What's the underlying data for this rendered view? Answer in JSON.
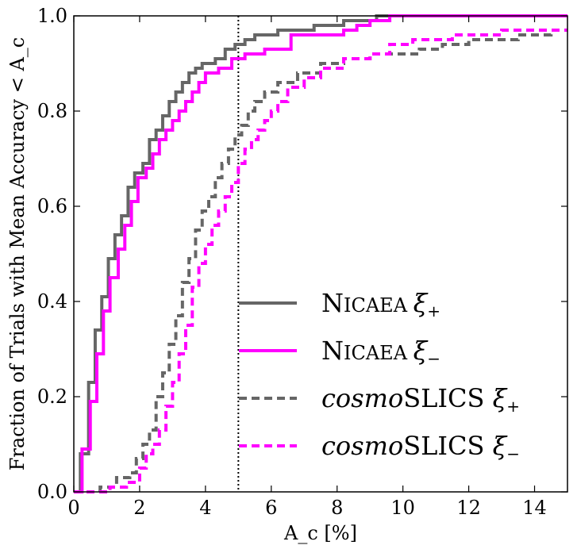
{
  "chart_data": {
    "type": "line",
    "step": true,
    "title": "",
    "xlabel": "A_c [%]",
    "ylabel": "Fraction of Trials with Mean Accuracy < A_c",
    "xlim": [
      0,
      15
    ],
    "ylim": [
      0,
      1
    ],
    "xticks": [
      0,
      2,
      4,
      6,
      8,
      10,
      12,
      14
    ],
    "yticks": [
      0.0,
      0.2,
      0.4,
      0.6,
      0.8,
      1.0
    ],
    "xtick_labels": [
      "0",
      "2",
      "4",
      "6",
      "8",
      "10",
      "12",
      "14"
    ],
    "ytick_labels": [
      "0.0",
      "0.2",
      "0.4",
      "0.6",
      "0.8",
      "1.0"
    ],
    "grid": false,
    "legend_position": "lower-right",
    "reference_line": {
      "x": 5,
      "style": "dotted",
      "color": "#000000"
    },
    "series": [
      {
        "name": "NICAEA ξ+",
        "legend": {
          "smallcaps": "Nicaea",
          "prefix": "",
          "greek": "ξ",
          "sub": "+"
        },
        "color": "#666666",
        "dash": "solid",
        "points": [
          [
            0.0,
            0.0
          ],
          [
            0.2,
            0.0
          ],
          [
            0.2,
            0.08
          ],
          [
            0.45,
            0.08
          ],
          [
            0.45,
            0.23
          ],
          [
            0.65,
            0.23
          ],
          [
            0.65,
            0.34
          ],
          [
            0.85,
            0.34
          ],
          [
            0.85,
            0.41
          ],
          [
            1.05,
            0.41
          ],
          [
            1.05,
            0.49
          ],
          [
            1.25,
            0.49
          ],
          [
            1.25,
            0.54
          ],
          [
            1.45,
            0.54
          ],
          [
            1.45,
            0.58
          ],
          [
            1.65,
            0.58
          ],
          [
            1.65,
            0.64
          ],
          [
            1.85,
            0.64
          ],
          [
            1.85,
            0.67
          ],
          [
            2.1,
            0.67
          ],
          [
            2.1,
            0.69
          ],
          [
            2.3,
            0.69
          ],
          [
            2.3,
            0.74
          ],
          [
            2.5,
            0.74
          ],
          [
            2.5,
            0.76
          ],
          [
            2.7,
            0.76
          ],
          [
            2.7,
            0.79
          ],
          [
            2.9,
            0.79
          ],
          [
            2.9,
            0.82
          ],
          [
            3.1,
            0.82
          ],
          [
            3.1,
            0.84
          ],
          [
            3.3,
            0.84
          ],
          [
            3.3,
            0.86
          ],
          [
            3.5,
            0.86
          ],
          [
            3.5,
            0.88
          ],
          [
            3.7,
            0.88
          ],
          [
            3.7,
            0.89
          ],
          [
            3.9,
            0.89
          ],
          [
            3.9,
            0.9
          ],
          [
            4.3,
            0.9
          ],
          [
            4.3,
            0.91
          ],
          [
            4.6,
            0.91
          ],
          [
            4.6,
            0.93
          ],
          [
            4.9,
            0.93
          ],
          [
            4.9,
            0.94
          ],
          [
            5.2,
            0.94
          ],
          [
            5.2,
            0.95
          ],
          [
            5.5,
            0.95
          ],
          [
            5.5,
            0.96
          ],
          [
            6.2,
            0.96
          ],
          [
            6.2,
            0.97
          ],
          [
            7.3,
            0.97
          ],
          [
            7.3,
            0.98
          ],
          [
            8.2,
            0.98
          ],
          [
            8.2,
            0.99
          ],
          [
            9.2,
            0.99
          ],
          [
            9.2,
            1.0
          ],
          [
            15.0,
            1.0
          ]
        ]
      },
      {
        "name": "NICAEA ξ−",
        "legend": {
          "smallcaps": "Nicaea",
          "prefix": "",
          "greek": "ξ",
          "sub": "−"
        },
        "color": "#ff00ff",
        "dash": "solid",
        "points": [
          [
            0.0,
            0.0
          ],
          [
            0.25,
            0.0
          ],
          [
            0.25,
            0.09
          ],
          [
            0.5,
            0.09
          ],
          [
            0.5,
            0.19
          ],
          [
            0.7,
            0.19
          ],
          [
            0.7,
            0.29
          ],
          [
            0.9,
            0.29
          ],
          [
            0.9,
            0.38
          ],
          [
            1.1,
            0.38
          ],
          [
            1.1,
            0.45
          ],
          [
            1.35,
            0.45
          ],
          [
            1.35,
            0.51
          ],
          [
            1.55,
            0.51
          ],
          [
            1.55,
            0.56
          ],
          [
            1.75,
            0.56
          ],
          [
            1.75,
            0.61
          ],
          [
            1.95,
            0.61
          ],
          [
            1.95,
            0.66
          ],
          [
            2.2,
            0.66
          ],
          [
            2.2,
            0.68
          ],
          [
            2.4,
            0.68
          ],
          [
            2.4,
            0.71
          ],
          [
            2.6,
            0.71
          ],
          [
            2.6,
            0.74
          ],
          [
            2.8,
            0.74
          ],
          [
            2.8,
            0.76
          ],
          [
            3.0,
            0.76
          ],
          [
            3.0,
            0.78
          ],
          [
            3.2,
            0.78
          ],
          [
            3.2,
            0.8
          ],
          [
            3.4,
            0.8
          ],
          [
            3.4,
            0.82
          ],
          [
            3.6,
            0.82
          ],
          [
            3.6,
            0.84
          ],
          [
            3.8,
            0.84
          ],
          [
            3.8,
            0.86
          ],
          [
            4.0,
            0.86
          ],
          [
            4.0,
            0.88
          ],
          [
            4.4,
            0.88
          ],
          [
            4.4,
            0.89
          ],
          [
            4.8,
            0.89
          ],
          [
            4.8,
            0.91
          ],
          [
            5.2,
            0.91
          ],
          [
            5.2,
            0.92
          ],
          [
            5.8,
            0.92
          ],
          [
            5.8,
            0.93
          ],
          [
            6.6,
            0.93
          ],
          [
            6.6,
            0.96
          ],
          [
            8.2,
            0.96
          ],
          [
            8.2,
            0.97
          ],
          [
            8.6,
            0.97
          ],
          [
            8.6,
            0.98
          ],
          [
            9.0,
            0.98
          ],
          [
            9.0,
            0.99
          ],
          [
            9.6,
            0.99
          ],
          [
            9.6,
            1.0
          ],
          [
            15.0,
            1.0
          ]
        ]
      },
      {
        "name": "cosmoSLICS ξ+",
        "legend": {
          "smallcaps": "",
          "prefix": "cosmo",
          "greek": "ξ",
          "sub": "+",
          "suffix": "SLICS"
        },
        "color": "#666666",
        "dash": "dashed",
        "points": [
          [
            0.0,
            0.0
          ],
          [
            0.8,
            0.0
          ],
          [
            0.8,
            0.01
          ],
          [
            1.3,
            0.01
          ],
          [
            1.3,
            0.03
          ],
          [
            1.7,
            0.03
          ],
          [
            1.7,
            0.04
          ],
          [
            1.9,
            0.04
          ],
          [
            1.9,
            0.07
          ],
          [
            2.1,
            0.07
          ],
          [
            2.1,
            0.1
          ],
          [
            2.3,
            0.1
          ],
          [
            2.3,
            0.13
          ],
          [
            2.5,
            0.13
          ],
          [
            2.5,
            0.2
          ],
          [
            2.7,
            0.2
          ],
          [
            2.7,
            0.25
          ],
          [
            2.9,
            0.25
          ],
          [
            2.9,
            0.31
          ],
          [
            3.1,
            0.31
          ],
          [
            3.1,
            0.37
          ],
          [
            3.3,
            0.37
          ],
          [
            3.3,
            0.44
          ],
          [
            3.5,
            0.44
          ],
          [
            3.5,
            0.49
          ],
          [
            3.7,
            0.49
          ],
          [
            3.7,
            0.55
          ],
          [
            3.9,
            0.55
          ],
          [
            3.9,
            0.59
          ],
          [
            4.1,
            0.59
          ],
          [
            4.1,
            0.62
          ],
          [
            4.3,
            0.62
          ],
          [
            4.3,
            0.66
          ],
          [
            4.5,
            0.66
          ],
          [
            4.5,
            0.69
          ],
          [
            4.7,
            0.69
          ],
          [
            4.7,
            0.72
          ],
          [
            4.9,
            0.72
          ],
          [
            4.9,
            0.75
          ],
          [
            5.1,
            0.75
          ],
          [
            5.1,
            0.77
          ],
          [
            5.3,
            0.77
          ],
          [
            5.3,
            0.8
          ],
          [
            5.5,
            0.8
          ],
          [
            5.5,
            0.82
          ],
          [
            5.8,
            0.82
          ],
          [
            5.8,
            0.84
          ],
          [
            6.2,
            0.84
          ],
          [
            6.2,
            0.86
          ],
          [
            6.8,
            0.86
          ],
          [
            6.8,
            0.88
          ],
          [
            7.5,
            0.88
          ],
          [
            7.5,
            0.9
          ],
          [
            8.2,
            0.9
          ],
          [
            8.2,
            0.91
          ],
          [
            9.0,
            0.91
          ],
          [
            9.0,
            0.92
          ],
          [
            10.5,
            0.92
          ],
          [
            10.5,
            0.93
          ],
          [
            11.2,
            0.93
          ],
          [
            11.2,
            0.94
          ],
          [
            12.0,
            0.94
          ],
          [
            12.0,
            0.95
          ],
          [
            13.5,
            0.95
          ],
          [
            13.5,
            0.96
          ],
          [
            14.5,
            0.96
          ],
          [
            14.5,
            0.97
          ],
          [
            15.0,
            0.97
          ]
        ]
      },
      {
        "name": "cosmoSLICS ξ−",
        "legend": {
          "smallcaps": "",
          "prefix": "cosmo",
          "greek": "ξ",
          "sub": "−",
          "suffix": "SLICS"
        },
        "color": "#ff00ff",
        "dash": "dashed",
        "points": [
          [
            0.0,
            0.0
          ],
          [
            1.1,
            0.0
          ],
          [
            1.1,
            0.01
          ],
          [
            1.6,
            0.01
          ],
          [
            1.6,
            0.02
          ],
          [
            2.0,
            0.02
          ],
          [
            2.0,
            0.05
          ],
          [
            2.2,
            0.05
          ],
          [
            2.2,
            0.08
          ],
          [
            2.4,
            0.08
          ],
          [
            2.4,
            0.1
          ],
          [
            2.6,
            0.1
          ],
          [
            2.6,
            0.13
          ],
          [
            2.8,
            0.13
          ],
          [
            2.8,
            0.18
          ],
          [
            3.0,
            0.18
          ],
          [
            3.0,
            0.23
          ],
          [
            3.2,
            0.23
          ],
          [
            3.2,
            0.29
          ],
          [
            3.4,
            0.29
          ],
          [
            3.4,
            0.35
          ],
          [
            3.6,
            0.35
          ],
          [
            3.6,
            0.43
          ],
          [
            3.8,
            0.43
          ],
          [
            3.8,
            0.48
          ],
          [
            4.0,
            0.48
          ],
          [
            4.0,
            0.52
          ],
          [
            4.2,
            0.52
          ],
          [
            4.2,
            0.56
          ],
          [
            4.4,
            0.56
          ],
          [
            4.4,
            0.59
          ],
          [
            4.6,
            0.59
          ],
          [
            4.6,
            0.62
          ],
          [
            4.8,
            0.62
          ],
          [
            4.8,
            0.65
          ],
          [
            5.0,
            0.65
          ],
          [
            5.0,
            0.69
          ],
          [
            5.2,
            0.69
          ],
          [
            5.2,
            0.72
          ],
          [
            5.4,
            0.72
          ],
          [
            5.4,
            0.74
          ],
          [
            5.6,
            0.74
          ],
          [
            5.6,
            0.76
          ],
          [
            5.8,
            0.76
          ],
          [
            5.8,
            0.78
          ],
          [
            6.0,
            0.78
          ],
          [
            6.0,
            0.8
          ],
          [
            6.2,
            0.8
          ],
          [
            6.2,
            0.82
          ],
          [
            6.5,
            0.82
          ],
          [
            6.5,
            0.85
          ],
          [
            7.0,
            0.85
          ],
          [
            7.0,
            0.87
          ],
          [
            7.5,
            0.87
          ],
          [
            7.5,
            0.89
          ],
          [
            8.2,
            0.89
          ],
          [
            8.2,
            0.91
          ],
          [
            9.0,
            0.91
          ],
          [
            9.0,
            0.92
          ],
          [
            9.6,
            0.92
          ],
          [
            9.6,
            0.94
          ],
          [
            10.3,
            0.94
          ],
          [
            10.3,
            0.95
          ],
          [
            11.5,
            0.95
          ],
          [
            11.5,
            0.96
          ],
          [
            13.0,
            0.96
          ],
          [
            13.0,
            0.97
          ],
          [
            15.0,
            0.97
          ]
        ]
      }
    ]
  }
}
